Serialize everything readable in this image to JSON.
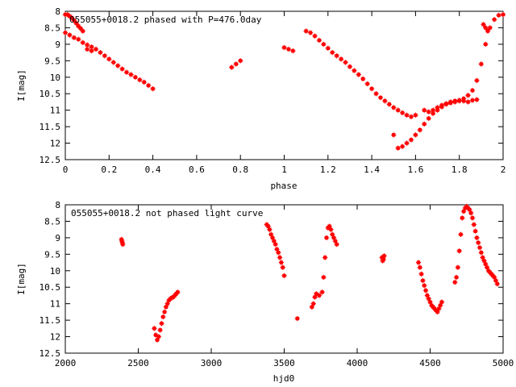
{
  "chart_data": [
    {
      "type": "scatter",
      "title": "055055+0018.2 phased with P=476.0day",
      "xlabel": "phase",
      "ylabel": "I[mag]",
      "xlim": [
        0,
        2
      ],
      "ylim": [
        8,
        12.5
      ],
      "y_inverted": true,
      "grid": false,
      "marker_color": "#ff0000",
      "xticks": [
        "0",
        "0.2",
        "0.4",
        "0.6",
        "0.8",
        "1",
        "1.2",
        "1.4",
        "1.6",
        "1.8",
        "2"
      ],
      "yticks": [
        "8",
        "8.5",
        "9",
        "9.5",
        "10",
        "10.5",
        "11",
        "11.5",
        "12",
        "12.5"
      ],
      "series": [
        {
          "x": [
            0.0,
            0.02,
            0.04,
            0.06,
            0.08,
            0.1,
            0.12,
            0.14,
            0.16,
            0.18,
            0.2,
            0.22,
            0.24,
            0.26,
            0.28,
            0.3,
            0.32,
            0.34,
            0.36,
            0.38,
            0.4,
            0.0,
            0.01,
            0.02,
            0.03,
            0.04,
            0.05,
            0.06,
            0.07,
            0.08,
            0.1,
            0.12,
            0.76,
            0.78,
            0.8,
            1.0,
            1.02,
            1.04,
            1.1,
            1.12,
            1.14,
            1.16,
            1.18,
            1.2,
            1.22,
            1.24,
            1.26,
            1.28,
            1.3,
            1.32,
            1.34,
            1.36,
            1.38,
            1.4,
            1.42,
            1.44,
            1.46,
            1.48,
            1.5,
            1.52,
            1.54,
            1.56,
            1.58,
            1.6,
            1.5,
            1.52,
            1.54,
            1.56,
            1.58,
            1.6,
            1.62,
            1.64,
            1.66,
            1.68,
            1.7,
            1.72,
            1.74,
            1.76,
            1.78,
            1.8,
            1.82,
            1.84,
            1.86,
            1.88,
            1.9,
            1.92,
            1.94,
            1.96,
            1.98,
            2.0,
            1.64,
            1.66,
            1.68,
            1.7,
            1.72,
            1.74,
            1.76,
            1.78,
            1.8,
            1.82,
            1.84,
            1.86,
            1.88,
            1.91,
            1.92,
            1.93
          ],
          "y": [
            8.65,
            8.72,
            8.8,
            8.85,
            8.95,
            9.02,
            9.08,
            9.15,
            9.25,
            9.35,
            9.45,
            9.55,
            9.65,
            9.75,
            9.85,
            9.92,
            10.0,
            10.08,
            10.15,
            10.25,
            10.35,
            8.1,
            8.1,
            8.15,
            8.2,
            8.28,
            8.36,
            8.45,
            8.52,
            8.6,
            9.15,
            9.2,
            9.7,
            9.6,
            9.5,
            9.1,
            9.15,
            9.2,
            8.6,
            8.65,
            8.75,
            8.88,
            9.0,
            9.12,
            9.25,
            9.35,
            9.45,
            9.55,
            9.68,
            9.8,
            9.92,
            10.05,
            10.2,
            10.35,
            10.5,
            10.62,
            10.72,
            10.82,
            10.92,
            11.0,
            11.08,
            11.15,
            11.2,
            11.15,
            11.75,
            12.15,
            12.1,
            12.0,
            11.9,
            11.75,
            11.6,
            11.42,
            11.25,
            11.1,
            11.0,
            10.9,
            10.82,
            10.75,
            10.72,
            10.7,
            10.65,
            10.55,
            10.4,
            10.1,
            9.6,
            9.0,
            8.5,
            8.25,
            8.12,
            8.1,
            11.0,
            11.05,
            11.0,
            10.92,
            10.85,
            10.8,
            10.78,
            10.75,
            10.72,
            10.72,
            10.75,
            10.7,
            10.68,
            8.4,
            8.5,
            8.6
          ]
        }
      ]
    },
    {
      "type": "scatter",
      "title": "055055+0018.2 not phased light curve",
      "xlabel": "hjd0",
      "ylabel": "I[mag]",
      "xlim": [
        2000,
        5000
      ],
      "ylim": [
        8,
        12.5
      ],
      "y_inverted": true,
      "grid": false,
      "marker_color": "#ff0000",
      "xticks": [
        "2000",
        "2500",
        "3000",
        "3500",
        "4000",
        "4500",
        "5000"
      ],
      "yticks": [
        "8",
        "8.5",
        "9",
        "9.5",
        "10",
        "10.5",
        "11",
        "11.5",
        "12",
        "12.5"
      ],
      "series": [
        {
          "x": [
            2385,
            2388,
            2391,
            2394,
            2610,
            2620,
            2630,
            2640,
            2650,
            2660,
            2670,
            2680,
            2690,
            2700,
            2710,
            2720,
            2730,
            2740,
            2750,
            2760,
            2770,
            3380,
            3390,
            3400,
            3410,
            3420,
            3430,
            3440,
            3450,
            3460,
            3470,
            3480,
            3490,
            3500,
            3590,
            3690,
            3700,
            3710,
            3720,
            3740,
            3760,
            3770,
            3780,
            3790,
            3800,
            3810,
            3820,
            3830,
            3840,
            3850,
            3860,
            4170,
            4175,
            4180,
            4185,
            4420,
            4430,
            4440,
            4450,
            4460,
            4470,
            4480,
            4490,
            4500,
            4510,
            4520,
            4530,
            4540,
            4550,
            4560,
            4570,
            4580,
            4670,
            4680,
            4690,
            4700,
            4710,
            4720,
            4730,
            4740,
            4750,
            4760,
            4770,
            4780,
            4790,
            4800,
            4810,
            4820,
            4830,
            4840,
            4850,
            4860,
            4870,
            4880,
            4890,
            4900,
            4910,
            4920,
            4930,
            4940,
            4950,
            4960
          ],
          "y": [
            9.05,
            9.1,
            9.15,
            9.2,
            11.75,
            11.95,
            12.1,
            12.0,
            11.8,
            11.6,
            11.4,
            11.25,
            11.1,
            11.0,
            10.9,
            10.85,
            10.82,
            10.8,
            10.75,
            10.7,
            10.65,
            8.6,
            8.65,
            8.75,
            8.9,
            9.0,
            9.1,
            9.2,
            9.35,
            9.45,
            9.6,
            9.75,
            9.9,
            10.15,
            11.45,
            11.1,
            11.0,
            10.8,
            10.7,
            10.75,
            10.65,
            10.2,
            9.6,
            9.0,
            8.7,
            8.65,
            8.75,
            8.9,
            9.0,
            9.1,
            9.2,
            9.6,
            9.7,
            9.65,
            9.55,
            9.75,
            9.9,
            10.1,
            10.3,
            10.45,
            10.6,
            10.75,
            10.85,
            10.95,
            11.05,
            11.1,
            11.15,
            11.2,
            11.25,
            11.15,
            11.05,
            10.95,
            10.35,
            10.2,
            9.9,
            9.4,
            8.9,
            8.4,
            8.2,
            8.1,
            8.05,
            8.1,
            8.15,
            8.25,
            8.4,
            8.6,
            8.8,
            9.0,
            9.15,
            9.3,
            9.45,
            9.6,
            9.7,
            9.8,
            9.9,
            10.0,
            10.05,
            10.1,
            10.15,
            10.2,
            10.3,
            10.4
          ]
        }
      ]
    }
  ]
}
